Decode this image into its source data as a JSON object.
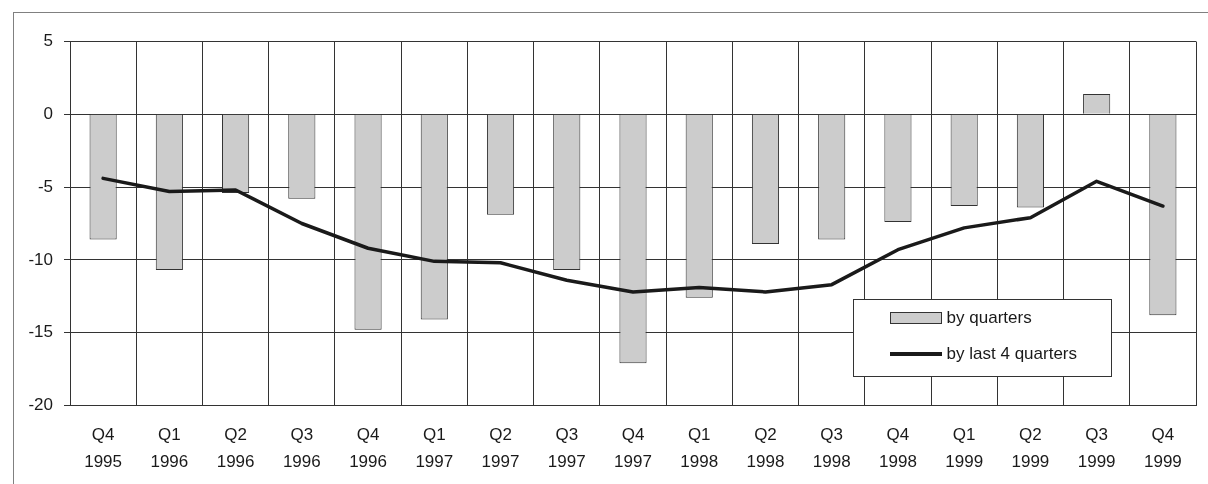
{
  "chart_data": {
    "type": "bar",
    "categories": [
      "Q4 1995",
      "Q1 1996",
      "Q2 1996",
      "Q3 1996",
      "Q4 1996",
      "Q1 1997",
      "Q2 1997",
      "Q3 1997",
      "Q4 1997",
      "Q1 1998",
      "Q2 1998",
      "Q3 1998",
      "Q4 1998",
      "Q1 1999",
      "Q2 1999",
      "Q3 1999",
      "Q4 1999"
    ],
    "series": [
      {
        "name": "by quarters",
        "type": "bar",
        "color": "#cccccc",
        "values": [
          -8.6,
          -10.7,
          -5.4,
          -5.8,
          -14.8,
          -14.1,
          -6.9,
          -10.7,
          -17.1,
          -12.6,
          -8.9,
          -8.6,
          -7.4,
          -6.3,
          -6.4,
          1.4,
          -13.8
        ]
      },
      {
        "name": "by last 4 quarters",
        "type": "line",
        "color": "#1a1a1a",
        "values": [
          -4.4,
          -5.3,
          -5.2,
          -7.5,
          -9.2,
          -10.1,
          -10.2,
          -11.4,
          -12.2,
          -11.9,
          -12.2,
          -11.7,
          -9.3,
          -7.8,
          -7.1,
          -4.6,
          -6.3
        ]
      }
    ],
    "ylim": [
      -20,
      5
    ],
    "yticks": [
      -20,
      -15,
      -10,
      -5,
      0,
      5
    ],
    "grid": true,
    "legend": "bottom right",
    "marker": "none",
    "line_style": "solid"
  }
}
